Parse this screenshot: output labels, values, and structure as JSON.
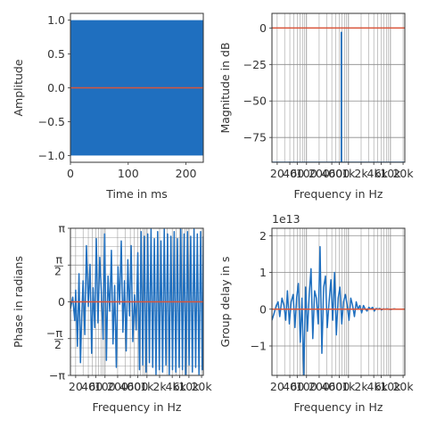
{
  "colors": {
    "signal": "#1f6fbf",
    "reference": "#d9553a",
    "grid": "#8c8c8c",
    "axis": "#333333"
  },
  "chart_data": [
    {
      "type": "line",
      "title": "",
      "xlabel": "Time in ms",
      "ylabel": "Amplitude",
      "xlim": [
        0,
        230
      ],
      "ylim": [
        -1.1,
        1.1
      ],
      "xticks": [
        0,
        100,
        200
      ],
      "yticks": [
        -1.0,
        -0.5,
        0.0,
        0.5,
        1.0
      ],
      "xtick_labels": [
        "0",
        "100",
        "200"
      ],
      "ytick_labels": [
        "−1.0",
        "−0.5",
        "0.0",
        "0.5",
        "1.0"
      ],
      "grid": false,
      "series": [
        {
          "role": "signal",
          "x": [
            0,
            230
          ],
          "y_band": [
            -1.0,
            1.0
          ]
        },
        {
          "role": "reference",
          "x": [
            0,
            230
          ],
          "y": [
            0,
            0
          ]
        }
      ]
    },
    {
      "type": "line",
      "title": "",
      "xlabel": "Frequency in Hz",
      "ylabel": "Magnitude in dB",
      "xscale": "log",
      "xlim": [
        15,
        22000
      ],
      "ylim": [
        -92,
        10
      ],
      "xtick_labels": [
        "20",
        "40",
        "60",
        "100",
        "200",
        "400",
        "600",
        "1k",
        "2k",
        "4k",
        "6k",
        "10k",
        "20k"
      ],
      "xticks": [
        20,
        40,
        60,
        100,
        200,
        400,
        600,
        1000,
        2000,
        4000,
        6000,
        10000,
        20000
      ],
      "yticks": [
        0,
        -25,
        -50,
        -75
      ],
      "ytick_labels": [
        "0",
        "−25",
        "−50",
        "−75"
      ],
      "grid": true,
      "series": [
        {
          "role": "signal",
          "x": [
            15,
            672,
            672,
            681,
            681,
            22000
          ],
          "y": [
            -92,
            -92,
            -3,
            -3,
            -92,
            -92
          ]
        },
        {
          "role": "reference",
          "x": [
            15,
            22000
          ],
          "y": [
            0,
            0
          ]
        }
      ]
    },
    {
      "type": "line",
      "title": "",
      "xlabel": "Frequency in Hz",
      "ylabel": "Phase in radians",
      "xscale": "log",
      "xlim": [
        15,
        22000
      ],
      "ylim": [
        -3.1416,
        3.1416
      ],
      "xtick_labels": [
        "20",
        "40",
        "60",
        "100",
        "200",
        "400",
        "600",
        "1k",
        "2k",
        "4k",
        "6k",
        "10k",
        "20k"
      ],
      "xticks": [
        20,
        40,
        60,
        100,
        200,
        400,
        600,
        1000,
        2000,
        4000,
        6000,
        10000,
        20000
      ],
      "yticks": [
        -3.1416,
        -1.5708,
        0,
        1.5708,
        3.1416
      ],
      "ytick_labels": [
        "−π",
        "−π/2",
        "0",
        "π/2",
        "π"
      ],
      "grid": true,
      "series": [
        {
          "role": "signal",
          "x": [
            15,
            17,
            19,
            20,
            22,
            24,
            26,
            28,
            30,
            33,
            36,
            40,
            44,
            48,
            52,
            57,
            62,
            68,
            75,
            82,
            90,
            98,
            108,
            118,
            130,
            142,
            155,
            170,
            186,
            204,
            223,
            244,
            267,
            292,
            320,
            350,
            383,
            420,
            460,
            504,
            552,
            605,
            663,
            726,
            795,
            870,
            953,
            1043,
            1142,
            1250,
            1369,
            1499,
            1641,
            1797,
            1968,
            2155,
            2359,
            2583,
            2828,
            3097,
            3391,
            3713,
            4066,
            4452,
            4875,
            5338,
            5845,
            6400,
            7008,
            7673,
            8402,
            9200,
            10073,
            11030,
            12077,
            13224,
            14480,
            15855,
            17361,
            19009,
            20814,
            22000
          ],
          "y": [
            -0.3,
            0.2,
            -0.8,
            0.5,
            -1.9,
            1.2,
            -2.6,
            -0.5,
            0.9,
            -1.4,
            2.4,
            -0.2,
            1.6,
            -2.2,
            0.6,
            -1.1,
            2.7,
            -0.9,
            1.9,
            0.4,
            -1.6,
            2.9,
            -2.5,
            1.1,
            -0.4,
            2.2,
            -1.8,
            0.7,
            -2.8,
            1.5,
            -0.1,
            2.6,
            -1.3,
            0.9,
            -2.1,
            1.8,
            -0.6,
            2.4,
            -1.7,
            0.3,
            -1.2,
            2.1,
            -2.9,
            3.0,
            -2.7,
            2.8,
            -3.0,
            2.9,
            -2.6,
            3.1,
            -2.8,
            2.7,
            -3.1,
            3.0,
            -2.9,
            2.6,
            -3.0,
            3.1,
            -2.7,
            2.9,
            -3.1,
            2.8,
            -2.9,
            3.0,
            -3.0,
            2.7,
            -2.8,
            3.1,
            -2.9,
            2.9,
            -3.1,
            3.0,
            -2.7,
            2.8,
            -3.0,
            3.1,
            -2.8,
            2.9,
            -3.1,
            3.0,
            -2.9,
            2.8
          ]
        },
        {
          "role": "reference",
          "x": [
            15,
            22000
          ],
          "y": [
            0,
            0
          ]
        }
      ]
    },
    {
      "type": "line",
      "title": "",
      "xlabel": "Frequency in Hz",
      "ylabel": "Group delay in s",
      "offset_text": "1e13",
      "xscale": "log",
      "xlim": [
        15,
        22000
      ],
      "ylim": [
        -1.8,
        2.2
      ],
      "xtick_labels": [
        "20",
        "40",
        "60",
        "100",
        "200",
        "400",
        "600",
        "1k",
        "2k",
        "4k",
        "6k",
        "10k",
        "20k"
      ],
      "xticks": [
        20,
        40,
        60,
        100,
        200,
        400,
        600,
        1000,
        2000,
        4000,
        6000,
        10000,
        20000
      ],
      "yticks": [
        -1,
        0,
        1,
        2
      ],
      "ytick_labels": [
        "−1",
        "0",
        "1",
        "2"
      ],
      "grid": true,
      "series": [
        {
          "role": "signal",
          "x": [
            15,
            17,
            19,
            21,
            23,
            26,
            29,
            32,
            35,
            39,
            43,
            48,
            53,
            58,
            64,
            71,
            78,
            86,
            95,
            105,
            116,
            128,
            141,
            156,
            172,
            190,
            210,
            232,
            256,
            283,
            312,
            345,
            381,
            421,
            465,
            513,
            567,
            626,
            691,
            763,
            843,
            931,
            1028,
            1135,
            1254,
            1385,
            1529,
            1689,
            1865,
            2060,
            2275,
            2512,
            2775,
            3064,
            3384,
            3737,
            4127,
            4558,
            5034,
            5560,
            6140,
            6781,
            7489,
            8271,
            9135,
            10089,
            11142,
            12306,
            13591,
            15010,
            16577,
            18308,
            20219,
            22000
          ],
          "y": [
            -0.3,
            -0.1,
            0.1,
            0.2,
            -0.2,
            0.3,
            0.1,
            -0.3,
            0.5,
            -0.4,
            0.2,
            0.4,
            -0.5,
            0.3,
            0.7,
            -0.9,
            0.3,
            -1.8,
            0.6,
            -0.6,
            0.4,
            1.1,
            -0.8,
            0.5,
            0.3,
            -0.4,
            1.7,
            -1.2,
            0.6,
            0.9,
            -0.5,
            0.2,
            0.8,
            -0.3,
            1.0,
            -0.7,
            0.3,
            0.6,
            -0.4,
            0.2,
            0.4,
            0.1,
            -0.3,
            0.3,
            0.1,
            -0.2,
            0.2,
            0.0,
            0.1,
            -0.1,
            0.1,
            0.0,
            -0.05,
            0.05,
            0.0,
            0.05,
            -0.05,
            0.02,
            0.0,
            0.02,
            -0.02,
            0.01,
            0.0,
            0.01,
            0.0,
            -0.01,
            0.0,
            0.01,
            0.0,
            0.0,
            0.0,
            0.0,
            0.0,
            0.0
          ]
        },
        {
          "role": "reference",
          "x": [
            15,
            22000
          ],
          "y": [
            0,
            0
          ]
        }
      ]
    }
  ]
}
